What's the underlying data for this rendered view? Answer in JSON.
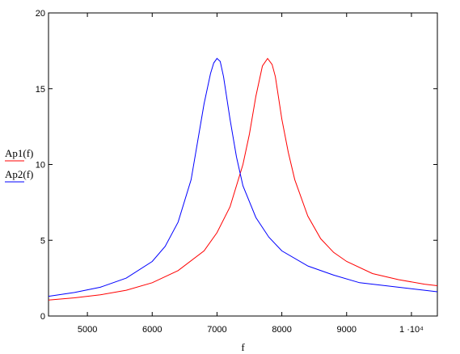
{
  "chart_data": {
    "type": "line",
    "xlabel": "f",
    "ylabel": "",
    "xlim": [
      4400,
      10400
    ],
    "ylim": [
      0,
      20
    ],
    "x_ticks": [
      5000,
      6000,
      7000,
      8000,
      9000,
      10000
    ],
    "x_tick_labels": [
      "5000",
      "6000",
      "7000",
      "8000",
      "9000",
      "1 ·10⁴"
    ],
    "y_ticks": [
      0,
      5,
      10,
      15,
      20
    ],
    "y_tick_labels": [
      "0",
      "5",
      "10",
      "15",
      "20"
    ],
    "grid": false,
    "legend_placement": "left",
    "series": [
      {
        "name": "Ap1(f)",
        "color": "#ff0000",
        "x": [
          4400,
          4800,
          5200,
          5600,
          6000,
          6400,
          6800,
          7000,
          7200,
          7400,
          7500,
          7600,
          7700,
          7780,
          7850,
          7900,
          8000,
          8100,
          8200,
          8400,
          8600,
          8800,
          9000,
          9400,
          9800,
          10200,
          10400
        ],
        "y": [
          1.05,
          1.2,
          1.4,
          1.7,
          2.2,
          3.0,
          4.3,
          5.5,
          7.2,
          10.0,
          12.0,
          14.5,
          16.5,
          17.0,
          16.6,
          15.8,
          13.0,
          10.8,
          9.0,
          6.6,
          5.1,
          4.2,
          3.6,
          2.8,
          2.4,
          2.1,
          2.0
        ]
      },
      {
        "name": "Ap2(f)",
        "color": "#0000ff",
        "x": [
          4400,
          4800,
          5200,
          5600,
          6000,
          6200,
          6400,
          6600,
          6700,
          6800,
          6900,
          6950,
          7000,
          7050,
          7100,
          7200,
          7300,
          7400,
          7600,
          7800,
          8000,
          8400,
          8800,
          9200,
          9600,
          10000,
          10400
        ],
        "y": [
          1.3,
          1.55,
          1.9,
          2.5,
          3.6,
          4.6,
          6.2,
          9.0,
          11.5,
          14.0,
          16.0,
          16.7,
          17.0,
          16.8,
          15.8,
          13.0,
          10.5,
          8.6,
          6.5,
          5.2,
          4.3,
          3.3,
          2.7,
          2.2,
          2.0,
          1.8,
          1.6
        ]
      }
    ]
  }
}
